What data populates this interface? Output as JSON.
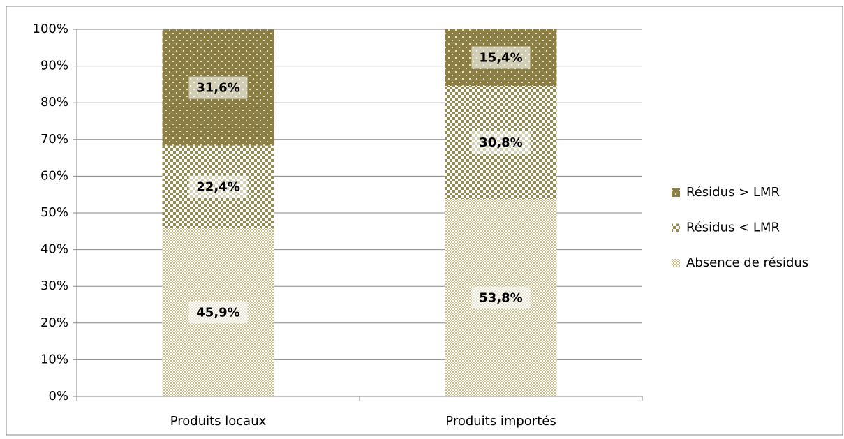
{
  "chart_data": {
    "type": "stacked_bar",
    "categories": [
      "Produits locaux",
      "Produits importés"
    ],
    "series": [
      {
        "name": "Absence de résidus",
        "color": "#c9bb8a",
        "values": [
          45.9,
          53.8
        ],
        "value_labels": [
          "45,9%",
          "53,8%"
        ]
      },
      {
        "name": "Résidus < LMR",
        "color": "#948a54",
        "values": [
          22.4,
          30.8
        ],
        "value_labels": [
          "22,4%",
          "30,8%"
        ]
      },
      {
        "name": "Résidus > LMR",
        "color": "#8c7f45",
        "values": [
          31.6,
          15.4
        ],
        "value_labels": [
          "31,6%",
          "15,4%"
        ]
      }
    ],
    "ylim": [
      0,
      100
    ],
    "yticks": [
      {
        "value": 0,
        "label": "0%"
      },
      {
        "value": 10,
        "label": "10%"
      },
      {
        "value": 20,
        "label": "20%"
      },
      {
        "value": 30,
        "label": "30%"
      },
      {
        "value": 40,
        "label": "40%"
      },
      {
        "value": 50,
        "label": "50%"
      },
      {
        "value": 60,
        "label": "60%"
      },
      {
        "value": 70,
        "label": "70%"
      },
      {
        "value": 80,
        "label": "80%"
      },
      {
        "value": 90,
        "label": "90%"
      },
      {
        "value": 100,
        "label": "100%"
      }
    ],
    "grid": true,
    "legend": "right"
  }
}
